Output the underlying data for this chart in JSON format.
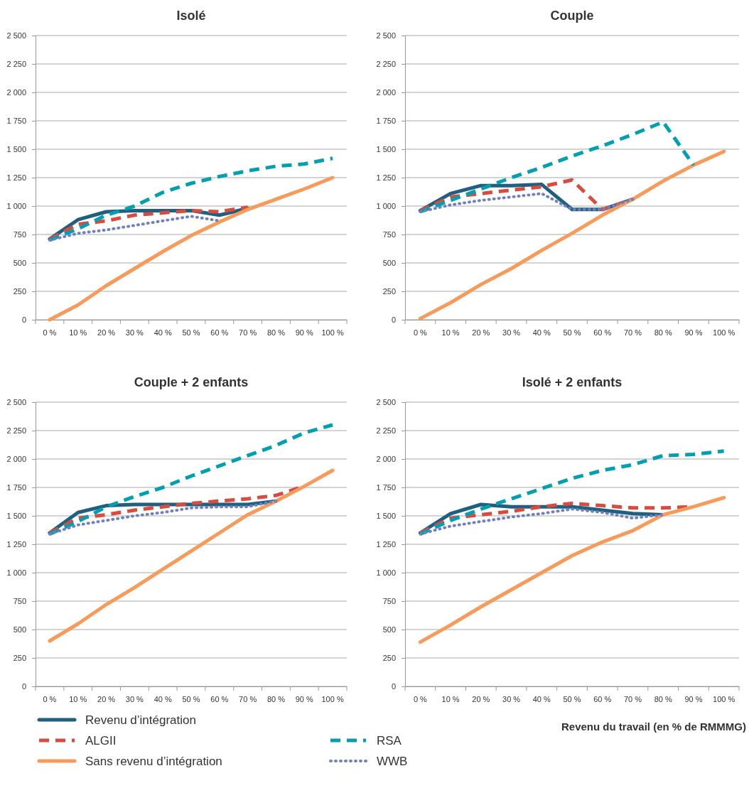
{
  "chart_data": [
    {
      "type": "line",
      "title": "Isolé",
      "categories": [
        "0 %",
        "10 %",
        "20 %",
        "30 %",
        "40 %",
        "50 %",
        "60 %",
        "70 %",
        "80 %",
        "90 %",
        "100 %"
      ],
      "ylim": [
        0,
        2500
      ],
      "yticks": [
        0,
        250,
        500,
        750,
        {
          "value": 1000,
          "label": "1 000"
        },
        {
          "value": 1250,
          "label": "1 250"
        },
        {
          "value": 1500,
          "label": "1 500"
        },
        {
          "value": 1750,
          "label": "1 750"
        },
        {
          "value": 2000,
          "label": "2 000"
        },
        {
          "value": 2250,
          "label": "2 250"
        },
        {
          "value": 2500,
          "label": "2 500"
        }
      ],
      "grid": "y",
      "legend": false,
      "series": [
        {
          "color": "#1f5f7f",
          "line_style": "solid",
          "values": [
            710,
            880,
            950,
            960,
            960,
            960,
            920,
            980,
            null,
            null,
            null
          ]
        },
        {
          "color": "#d94b3f",
          "line_style": "dashed",
          "values": [
            710,
            840,
            870,
            920,
            940,
            960,
            950,
            990,
            null,
            null,
            null
          ]
        },
        {
          "color": "#f79a5a",
          "line_style": "solid",
          "values": [
            0,
            130,
            300,
            450,
            600,
            740,
            860,
            970,
            1060,
            1150,
            1250
          ]
        },
        {
          "color": "#00a0b0",
          "line_style": "dashed",
          "values": [
            700,
            800,
            920,
            1000,
            1120,
            1200,
            1260,
            1310,
            1350,
            1370,
            1420
          ]
        },
        {
          "color": "#6f80c0",
          "line_style": "dotted",
          "values": [
            700,
            760,
            790,
            830,
            870,
            910,
            870,
            null,
            null,
            null,
            null
          ]
        }
      ]
    },
    {
      "type": "line",
      "title": "Couple",
      "categories": [
        "0 %",
        "10 %",
        "20 %",
        "30 %",
        "40 %",
        "50 %",
        "60 %",
        "70 %",
        "80 %",
        "90 %",
        "100 %"
      ],
      "ylim": [
        0,
        2500
      ],
      "yticks": [
        0,
        250,
        500,
        750,
        {
          "value": 1000,
          "label": "1 000"
        },
        {
          "value": 1250,
          "label": "1 250"
        },
        {
          "value": 1500,
          "label": "1 500"
        },
        {
          "value": 1750,
          "label": "1 750"
        },
        {
          "value": 2000,
          "label": "2 000"
        },
        {
          "value": 2250,
          "label": "2 250"
        },
        {
          "value": 2500,
          "label": "2 500"
        }
      ],
      "grid": "y",
      "legend": false,
      "series": [
        {
          "color": "#1f5f7f",
          "line_style": "solid",
          "values": [
            960,
            1110,
            1180,
            1180,
            1190,
            970,
            970,
            1060,
            null,
            null,
            null
          ]
        },
        {
          "color": "#d94b3f",
          "line_style": "dashed",
          "values": [
            960,
            1080,
            1110,
            1140,
            1170,
            1230,
            970,
            1060,
            null,
            null,
            null
          ]
        },
        {
          "color": "#f79a5a",
          "line_style": "solid",
          "values": [
            10,
            150,
            310,
            450,
            610,
            760,
            920,
            1060,
            1220,
            1360,
            1480
          ]
        },
        {
          "color": "#00a0b0",
          "line_style": "dashed",
          "values": [
            950,
            1050,
            1150,
            1250,
            1340,
            1440,
            1530,
            1630,
            1740,
            1360,
            null
          ]
        },
        {
          "color": "#6f80c0",
          "line_style": "dotted",
          "values": [
            950,
            1010,
            1050,
            1080,
            1110,
            970,
            970,
            1060,
            null,
            null,
            null
          ]
        }
      ]
    },
    {
      "type": "line",
      "title": "Couple + 2 enfants",
      "categories": [
        "0 %",
        "10 %",
        "20 %",
        "30 %",
        "40 %",
        "50 %",
        "60 %",
        "70 %",
        "80 %",
        "90 %",
        "100 %"
      ],
      "ylim": [
        0,
        2500
      ],
      "yticks": [
        0,
        250,
        500,
        750,
        {
          "value": 1000,
          "label": "1 000"
        },
        {
          "value": 1250,
          "label": "1 250"
        },
        {
          "value": 1500,
          "label": "1 500"
        },
        {
          "value": 1750,
          "label": "1 750"
        },
        {
          "value": 2000,
          "label": "2 000"
        },
        {
          "value": 2250,
          "label": "2 250"
        },
        {
          "value": 2500,
          "label": "2 500"
        }
      ],
      "grid": "y",
      "legend": "bottom",
      "series": [
        {
          "name": "Revenu d’intégration",
          "color": "#1f5f7f",
          "line_style": "solid",
          "values": [
            1350,
            1530,
            1590,
            1600,
            1600,
            1600,
            1600,
            1600,
            1630,
            null,
            null
          ]
        },
        {
          "name": "ALGII",
          "color": "#d94b3f",
          "line_style": "dashed",
          "values": [
            1350,
            1480,
            1510,
            1550,
            1580,
            1610,
            1630,
            1650,
            1680,
            1760,
            null
          ]
        },
        {
          "name": "Sans revenu d’intégration",
          "color": "#f79a5a",
          "line_style": "solid",
          "values": [
            400,
            550,
            720,
            870,
            1030,
            1190,
            1350,
            1510,
            1630,
            1760,
            1900
          ]
        },
        {
          "name": "RSA",
          "color": "#00a0b0",
          "line_style": "dashed",
          "values": [
            1340,
            1450,
            1580,
            1670,
            1750,
            1850,
            1940,
            2030,
            2120,
            2230,
            2300
          ]
        },
        {
          "name": "WWB",
          "color": "#6f80c0",
          "line_style": "dotted",
          "values": [
            1340,
            1420,
            1460,
            1500,
            1530,
            1570,
            1580,
            1580,
            1630,
            null,
            null
          ]
        }
      ]
    },
    {
      "type": "line",
      "title": "Isolé + 2 enfants",
      "xlabel": "Revenu du travail (en % de RMMMG)",
      "categories": [
        "0 %",
        "10 %",
        "20 %",
        "30 %",
        "40 %",
        "50 %",
        "60 %",
        "70 %",
        "80 %",
        "90 %",
        "100 %"
      ],
      "ylim": [
        0,
        2500
      ],
      "yticks": [
        0,
        250,
        500,
        750,
        {
          "value": 1000,
          "label": "1 000"
        },
        {
          "value": 1250,
          "label": "1 250"
        },
        {
          "value": 1500,
          "label": "1 500"
        },
        {
          "value": 1750,
          "label": "1 750"
        },
        {
          "value": 2000,
          "label": "2 000"
        },
        {
          "value": 2250,
          "label": "2 250"
        },
        {
          "value": 2500,
          "label": "2 500"
        }
      ],
      "grid": "y",
      "legend": false,
      "series": [
        {
          "color": "#1f5f7f",
          "line_style": "solid",
          "values": [
            1350,
            1520,
            1600,
            1580,
            1580,
            1580,
            1550,
            1520,
            1510,
            null,
            null
          ]
        },
        {
          "color": "#d94b3f",
          "line_style": "dashed",
          "values": [
            1350,
            1480,
            1510,
            1540,
            1580,
            1610,
            1590,
            1570,
            1570,
            1580,
            null
          ]
        },
        {
          "color": "#f79a5a",
          "line_style": "solid",
          "values": [
            390,
            540,
            700,
            850,
            1000,
            1150,
            1270,
            1370,
            1510,
            1580,
            1660
          ]
        },
        {
          "color": "#00a0b0",
          "line_style": "dashed",
          "values": [
            1340,
            1460,
            1560,
            1650,
            1740,
            1830,
            1900,
            1950,
            2030,
            2040,
            2070
          ]
        },
        {
          "color": "#6f80c0",
          "line_style": "dotted",
          "values": [
            1340,
            1410,
            1450,
            1490,
            1520,
            1560,
            1530,
            1480,
            1510,
            null,
            null
          ]
        }
      ]
    }
  ]
}
